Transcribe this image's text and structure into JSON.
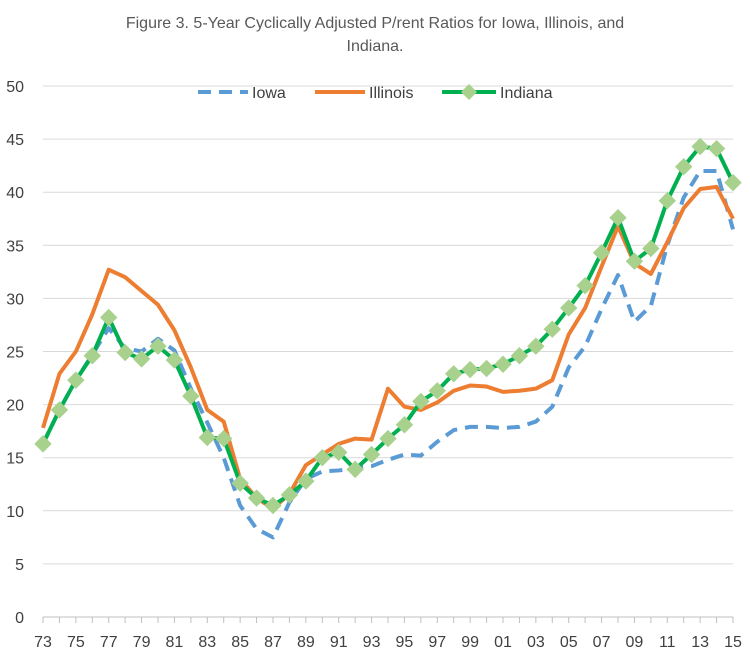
{
  "colors": {
    "iowa": "#5B9BD5",
    "illinois": "#ED7D31",
    "indiana": "#00B050",
    "indiana_marker": "#A9D18E",
    "grid": "#D9D9D9",
    "axis": "#BFBFBF"
  },
  "chart_data": {
    "type": "line",
    "title": "Figure 3.  5-Year Cyclically Adjusted P/rent Ratios for Iowa, Illinois, and Indiana.",
    "title_lines": [
      "Figure 3.  5-Year Cyclically Adjusted P/rent Ratios for Iowa, Illinois, and",
      "Indiana."
    ],
    "xlabel": "",
    "ylabel": "",
    "ylim": [
      0,
      50
    ],
    "yticks": [
      0,
      5,
      10,
      15,
      20,
      25,
      30,
      35,
      40,
      45,
      50
    ],
    "grid": "horizontal",
    "legend_position": "top",
    "x": [
      1973,
      1974,
      1975,
      1976,
      1977,
      1978,
      1979,
      1980,
      1981,
      1982,
      1983,
      1984,
      1985,
      1986,
      1987,
      1988,
      1989,
      1990,
      1991,
      1992,
      1993,
      1994,
      1995,
      1996,
      1997,
      1998,
      1999,
      2000,
      2001,
      2002,
      2003,
      2004,
      2005,
      2006,
      2007,
      2008,
      2009,
      2010,
      2011,
      2012,
      2013,
      2014,
      2015
    ],
    "xtick_labels": [
      "73",
      "75",
      "77",
      "79",
      "81",
      "83",
      "85",
      "87",
      "89",
      "91",
      "93",
      "95",
      "97",
      "99",
      "01",
      "03",
      "05",
      "07",
      "09",
      "11",
      "13",
      "15"
    ],
    "xtick_years": [
      1973,
      1975,
      1977,
      1979,
      1981,
      1983,
      1985,
      1987,
      1989,
      1991,
      1993,
      1995,
      1997,
      1999,
      2001,
      2003,
      2005,
      2007,
      2009,
      2011,
      2013,
      2015
    ],
    "series": [
      {
        "name": "Iowa",
        "key": "iowa",
        "style": "dashed",
        "values": [
          16.3,
          19.5,
          22.3,
          24.7,
          27.2,
          25.3,
          25.0,
          26.2,
          25.1,
          21.5,
          18.3,
          15.0,
          10.5,
          8.3,
          7.5,
          10.8,
          13.0,
          13.7,
          13.8,
          14.0,
          14.2,
          14.8,
          15.3,
          15.2,
          16.5,
          17.6,
          17.9,
          17.9,
          17.8,
          17.9,
          18.4,
          19.8,
          23.5,
          25.5,
          29.0,
          32.2,
          27.8,
          29.3,
          35.0,
          39.5,
          42.0,
          42.0,
          36.5
        ]
      },
      {
        "name": "Illinois",
        "key": "illinois",
        "style": "solid",
        "values": [
          17.8,
          22.9,
          25.0,
          28.5,
          32.7,
          32.0,
          30.7,
          29.4,
          27.0,
          23.5,
          19.5,
          18.4,
          13.0,
          11.2,
          10.2,
          11.6,
          14.3,
          15.3,
          16.3,
          16.8,
          16.7,
          21.5,
          19.8,
          19.5,
          20.2,
          21.3,
          21.8,
          21.7,
          21.2,
          21.3,
          21.5,
          22.3,
          26.6,
          29.1,
          33.0,
          36.8,
          33.3,
          32.3,
          35.3,
          38.5,
          40.3,
          40.5,
          37.5
        ]
      },
      {
        "name": "Indiana",
        "key": "indiana",
        "style": "solid-markers",
        "values": [
          16.3,
          19.5,
          22.3,
          24.6,
          28.2,
          24.9,
          24.3,
          25.5,
          24.2,
          20.8,
          16.9,
          16.8,
          12.6,
          11.2,
          10.5,
          11.5,
          12.8,
          15.0,
          15.5,
          13.9,
          15.3,
          16.8,
          18.1,
          20.3,
          21.3,
          22.9,
          23.3,
          23.4,
          23.8,
          24.6,
          25.5,
          27.1,
          29.1,
          31.2,
          34.3,
          37.6,
          33.5,
          34.7,
          39.2,
          42.4,
          44.3,
          44.1,
          40.9
        ]
      }
    ]
  }
}
